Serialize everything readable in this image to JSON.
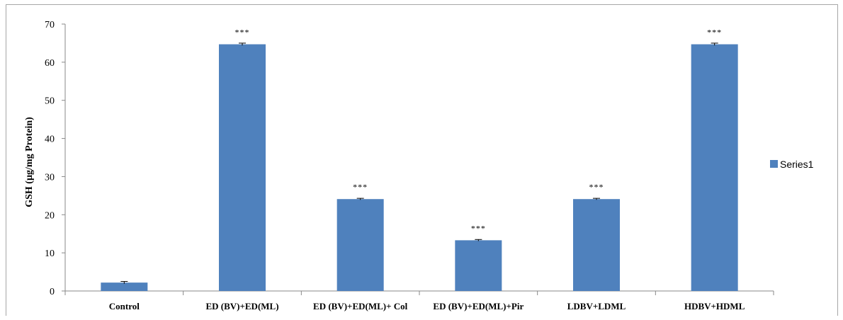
{
  "chart_data": {
    "type": "bar",
    "title": "",
    "xlabel": "",
    "ylabel": "GSH (µg/mg Protein)",
    "ylim": [
      0,
      70
    ],
    "yticks": [
      0,
      10,
      20,
      30,
      40,
      50,
      60,
      70
    ],
    "ytick_labels": [
      "0",
      "10",
      "20",
      "30",
      "40",
      "50",
      "60",
      "70"
    ],
    "categories": [
      "Control",
      "ED (BV)+ED(ML)",
      "ED (BV)+ED(ML)+ Col",
      "ED (BV)+ED(ML)+Pir",
      "LDBV+LDML",
      "HDBV+HDML"
    ],
    "series": [
      {
        "name": "Series1",
        "values": [
          2.2,
          64.7,
          24.1,
          13.3,
          24.1,
          64.7
        ],
        "errors": [
          0.3,
          0.3,
          0.2,
          0.2,
          0.2,
          0.3
        ],
        "color": "#4f81bd"
      }
    ],
    "annotations": [
      "",
      "***",
      "***",
      "***",
      "***",
      "***"
    ],
    "grid": false,
    "legend": "right"
  }
}
